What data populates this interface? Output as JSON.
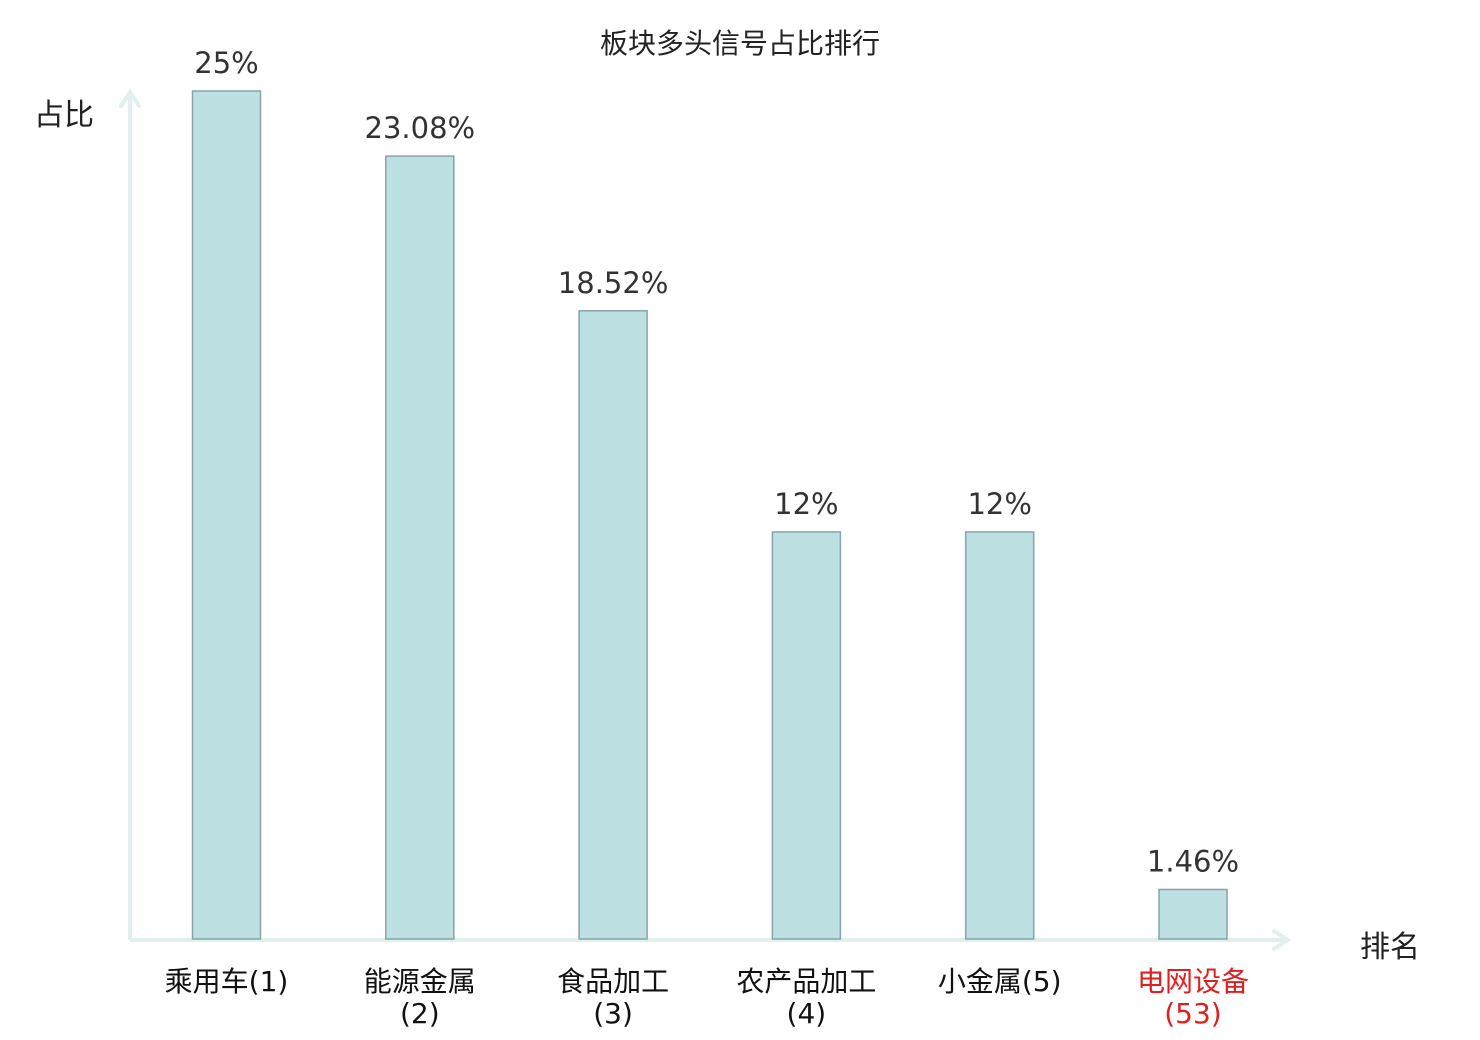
{
  "chart_data": {
    "type": "bar",
    "title": "板块多头信号占比排行",
    "ylabel": "占比",
    "xlabel": "排名",
    "ylim": [
      0,
      25
    ],
    "grid": false,
    "categories": [
      "乘用车(1)",
      "能源金属(2)",
      "食品加工(3)",
      "农产品加工(4)",
      "小金属(5)",
      "电网设备(53)"
    ],
    "values": [
      25,
      23.08,
      18.52,
      12,
      12,
      1.46
    ],
    "value_labels": [
      "25%",
      "23.08%",
      "18.52%",
      "12%",
      "12%",
      "1.46%"
    ],
    "highlight_index": 5,
    "colors": {
      "bar_fill": "#bde0e2",
      "bar_stroke": "#8aa3a6",
      "axis": "#dff0ee",
      "highlight_label": "#e02020",
      "label_text": "#333333"
    }
  }
}
